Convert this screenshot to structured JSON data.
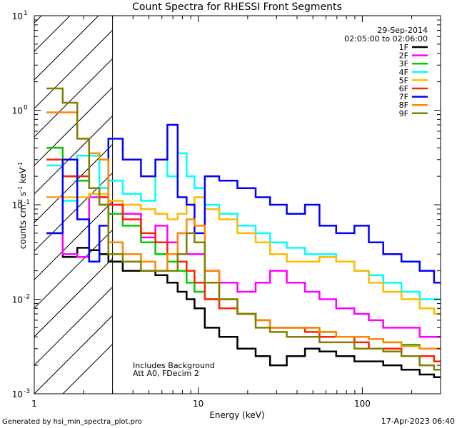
{
  "chart_data": {
    "type": "line",
    "title": "Count Spectra for RHESSI Front Segments",
    "xlabel": "Energy (keV)",
    "ylabel_base": "counts cm",
    "ylabel_exp1": "-2",
    "ylabel_mid": " s",
    "ylabel_exp2": "-1",
    "ylabel_end": " keV",
    "ylabel_exp3": "-1",
    "xscale": "log",
    "yscale": "log",
    "xlim": [
      1,
      300
    ],
    "ylim": [
      0.001,
      10
    ],
    "x_ticks": [
      {
        "value": 1,
        "label": "1"
      },
      {
        "value": 10,
        "label": "10"
      },
      {
        "value": 100,
        "label": "100"
      }
    ],
    "y_ticks": [
      {
        "value": 0.001,
        "base": "10",
        "exp": "-3"
      },
      {
        "value": 0.01,
        "base": "10",
        "exp": "-2"
      },
      {
        "value": 0.1,
        "base": "10",
        "exp": "-1"
      },
      {
        "value": 1,
        "base": "10",
        "exp": "0"
      },
      {
        "value": 10,
        "base": "10",
        "exp": "1"
      }
    ],
    "hatched_region_x": [
      1,
      3
    ],
    "date": "29-Sep-2014",
    "time_range": "02:05:00 to 02:06:00",
    "notes": [
      "Includes Background",
      "Att A0, FDecim 2"
    ],
    "legend_position": "top-right",
    "series": [
      {
        "name": "1F",
        "color": "#000000",
        "x": [
          1.33,
          1.67,
          2.0,
          2.33,
          2.67,
          3.0,
          4.0,
          5.0,
          6.0,
          7.0,
          8.0,
          9.0,
          10.0,
          12.0,
          15.0,
          20.0,
          25.0,
          30.0,
          40.0,
          50.0,
          60.0,
          80.0,
          100.0,
          120.0,
          150.0,
          200.0,
          250.0,
          300.0
        ],
        "y": [
          0.05,
          0.028,
          0.035,
          0.033,
          0.03,
          0.025,
          0.02,
          0.02,
          0.018,
          0.015,
          0.012,
          0.01,
          0.008,
          0.005,
          0.004,
          0.003,
          0.0025,
          0.002,
          0.0025,
          0.003,
          0.0028,
          0.0025,
          0.0022,
          0.0022,
          0.002,
          0.0018,
          0.0016,
          0.0015
        ]
      },
      {
        "name": "2F",
        "color": "#ff00ff",
        "x": [
          1.33,
          1.67,
          2.0,
          2.33,
          2.67,
          3.0,
          4.0,
          5.0,
          6.0,
          7.0,
          8.0,
          9.0,
          10.0,
          12.0,
          15.0,
          20.0,
          25.0,
          30.0,
          40.0,
          50.0,
          60.0,
          80.0,
          100.0,
          120.0,
          150.0,
          200.0,
          250.0,
          300.0
        ],
        "y": [
          0.12,
          0.03,
          0.028,
          0.12,
          0.12,
          0.1,
          0.08,
          0.045,
          0.06,
          0.04,
          0.05,
          0.03,
          0.03,
          0.02,
          0.015,
          0.012,
          0.015,
          0.02,
          0.015,
          0.012,
          0.01,
          0.008,
          0.007,
          0.006,
          0.005,
          0.005,
          0.004,
          0.004
        ]
      },
      {
        "name": "3F",
        "color": "#00cc00",
        "x": [
          1.33,
          1.67,
          2.0,
          2.33,
          2.67,
          3.0,
          4.0,
          5.0,
          6.0,
          7.0,
          8.0,
          9.0,
          10.0,
          12.0,
          15.0,
          20.0,
          25.0,
          30.0,
          40.0,
          50.0,
          60.0,
          80.0,
          100.0,
          120.0,
          150.0,
          200.0,
          250.0,
          300.0
        ],
        "y": [
          0.4,
          0.2,
          0.18,
          0.15,
          0.1,
          0.08,
          0.06,
          0.04,
          0.03,
          0.025,
          0.02,
          0.015,
          0.012,
          0.01,
          0.008,
          0.007,
          0.006,
          0.005,
          0.005,
          0.005,
          0.0045,
          0.004,
          0.004,
          0.0038,
          0.0035,
          0.0033,
          0.003,
          0.003
        ]
      },
      {
        "name": "4F",
        "color": "#00ffff",
        "x": [
          1.33,
          1.67,
          2.0,
          2.33,
          2.67,
          3.0,
          4.0,
          5.0,
          6.0,
          7.0,
          8.0,
          9.0,
          10.0,
          12.0,
          15.0,
          20.0,
          25.0,
          30.0,
          40.0,
          50.0,
          60.0,
          80.0,
          100.0,
          120.0,
          150.0,
          200.0,
          250.0,
          300.0
        ],
        "y": [
          0.26,
          0.11,
          0.33,
          0.33,
          0.15,
          0.18,
          0.13,
          0.11,
          0.3,
          0.2,
          0.35,
          0.2,
          0.15,
          0.1,
          0.08,
          0.06,
          0.05,
          0.04,
          0.035,
          0.03,
          0.03,
          0.025,
          0.02,
          0.018,
          0.015,
          0.012,
          0.01,
          0.01
        ]
      },
      {
        "name": "5F",
        "color": "#ffbb00",
        "x": [
          1.33,
          1.67,
          2.0,
          2.33,
          2.67,
          3.0,
          4.0,
          5.0,
          6.0,
          7.0,
          8.0,
          9.0,
          10.0,
          12.0,
          15.0,
          20.0,
          25.0,
          30.0,
          40.0,
          50.0,
          60.0,
          80.0,
          100.0,
          120.0,
          150.0,
          200.0,
          250.0,
          300.0
        ],
        "y": [
          0.12,
          0.12,
          0.12,
          0.13,
          0.13,
          0.11,
          0.1,
          0.09,
          0.08,
          0.07,
          0.08,
          0.1,
          0.12,
          0.09,
          0.07,
          0.05,
          0.04,
          0.03,
          0.025,
          0.025,
          0.028,
          0.025,
          0.02,
          0.015,
          0.012,
          0.01,
          0.008,
          0.007
        ]
      },
      {
        "name": "6F",
        "color": "#ff2200",
        "x": [
          1.33,
          1.67,
          2.0,
          2.33,
          2.67,
          3.0,
          4.0,
          5.0,
          6.0,
          7.0,
          8.0,
          9.0,
          10.0,
          12.0,
          15.0,
          20.0,
          25.0,
          30.0,
          40.0,
          50.0,
          60.0,
          80.0,
          100.0,
          120.0,
          150.0,
          200.0,
          250.0,
          300.0
        ],
        "y": [
          0.3,
          0.2,
          0.2,
          0.15,
          0.12,
          0.1,
          0.07,
          0.05,
          0.04,
          0.03,
          0.025,
          0.02,
          0.015,
          0.01,
          0.008,
          0.007,
          0.006,
          0.005,
          0.005,
          0.0045,
          0.004,
          0.004,
          0.0035,
          0.003,
          0.003,
          0.0025,
          0.0025,
          0.0022
        ]
      },
      {
        "name": "7F",
        "color": "#0000ff",
        "x": [
          1.33,
          1.67,
          2.0,
          2.33,
          2.67,
          3.0,
          4.0,
          5.0,
          6.0,
          7.0,
          8.0,
          9.0,
          10.0,
          12.0,
          15.0,
          20.0,
          25.0,
          30.0,
          40.0,
          50.0,
          60.0,
          80.0,
          100.0,
          120.0,
          150.0,
          200.0,
          250.0,
          300.0
        ],
        "y": [
          0.05,
          0.3,
          0.07,
          0.025,
          0.06,
          0.5,
          0.3,
          0.2,
          0.3,
          0.7,
          0.12,
          0.1,
          0.05,
          0.2,
          0.18,
          0.15,
          0.12,
          0.1,
          0.08,
          0.1,
          0.06,
          0.05,
          0.06,
          0.04,
          0.03,
          0.025,
          0.02,
          0.015
        ]
      },
      {
        "name": "8F",
        "color": "#ff8800",
        "x": [
          1.33,
          1.67,
          2.0,
          2.33,
          2.67,
          3.0,
          4.0,
          5.0,
          6.0,
          7.0,
          8.0,
          9.0,
          10.0,
          12.0,
          15.0,
          20.0,
          25.0,
          30.0,
          40.0,
          50.0,
          60.0,
          80.0,
          100.0,
          120.0,
          150.0,
          200.0,
          250.0,
          300.0
        ],
        "y": [
          0.95,
          0.95,
          0.5,
          0.35,
          0.3,
          0.04,
          0.03,
          0.025,
          0.02,
          0.03,
          0.05,
          0.07,
          0.06,
          0.02,
          0.01,
          0.007,
          0.006,
          0.005,
          0.005,
          0.005,
          0.0045,
          0.004,
          0.004,
          0.0038,
          0.0035,
          0.0032,
          0.003,
          0.003
        ]
      },
      {
        "name": "9F",
        "color": "#808000",
        "x": [
          1.33,
          1.67,
          2.0,
          2.33,
          2.67,
          3.0,
          4.0,
          5.0,
          6.0,
          7.0,
          8.0,
          9.0,
          10.0,
          12.0,
          15.0,
          20.0,
          25.0,
          30.0,
          40.0,
          50.0,
          60.0,
          80.0,
          100.0,
          120.0,
          150.0,
          200.0,
          250.0,
          300.0
        ],
        "y": [
          1.7,
          1.2,
          0.5,
          0.15,
          0.1,
          0.03,
          0.025,
          0.02,
          0.02,
          0.02,
          0.03,
          0.05,
          0.04,
          0.015,
          0.01,
          0.007,
          0.005,
          0.0045,
          0.004,
          0.004,
          0.0035,
          0.0035,
          0.003,
          0.003,
          0.0028,
          0.0025,
          0.002,
          0.0018
        ]
      }
    ]
  },
  "footer": {
    "generated_by": "Generated by hsi_min_spectra_plot.pro",
    "timestamp": "17-Apr-2023 06:40"
  }
}
